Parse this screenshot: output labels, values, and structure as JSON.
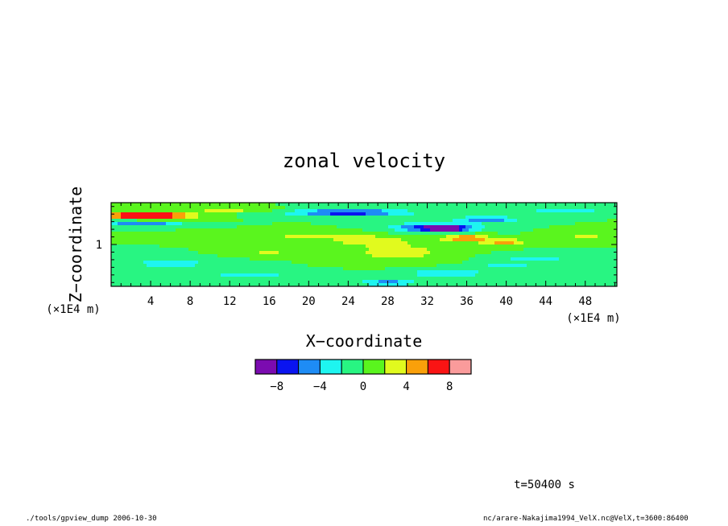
{
  "chart_data": {
    "type": "heatmap",
    "title": "zonal velocity",
    "xlabel": "X−coordinate",
    "ylabel": "Z−coordinate",
    "x_unit": "(×1E4 m)",
    "y_unit": "(×1E4 m)",
    "xlim": [
      0,
      51.2
    ],
    "ylim": [
      0.45,
      1.55
    ],
    "x_ticks": [
      4,
      8,
      12,
      16,
      20,
      24,
      28,
      32,
      36,
      40,
      44,
      48
    ],
    "y_ticks": [
      1
    ],
    "colorbar": {
      "levels": [
        -10,
        -8,
        -6,
        -4,
        -2,
        0,
        2,
        4,
        6,
        8,
        10
      ],
      "colors": [
        "#7b0bb0",
        "#0a14f0",
        "#1e8cf5",
        "#1ef5f0",
        "#28f582",
        "#5af51e",
        "#e1fa1e",
        "#faa00a",
        "#fa1414",
        "#fa9b9b"
      ],
      "tick_labels": [
        "-8",
        "-4",
        "0",
        "4",
        "8"
      ],
      "tick_values": [
        -8,
        -4,
        0,
        4,
        8
      ]
    },
    "background_value": 0,
    "features": [
      {
        "x": 2,
        "z": 1.38,
        "rx": 3.5,
        "rz": 0.035,
        "v": 9
      },
      {
        "x": 6,
        "z": 1.38,
        "rx": 3,
        "rz": 0.04,
        "v": 6
      },
      {
        "x": 3,
        "z": 1.27,
        "rx": 4,
        "rz": 0.03,
        "v": -6
      },
      {
        "x": 24,
        "z": 1.42,
        "rx": 6,
        "rz": 0.04,
        "v": -8
      },
      {
        "x": 33,
        "z": 1.22,
        "rx": 4,
        "rz": 0.06,
        "v": -9
      },
      {
        "x": 34,
        "z": 1.21,
        "rx": 1.5,
        "rz": 0.025,
        "v": -10
      },
      {
        "x": 38,
        "z": 1.33,
        "rx": 3,
        "rz": 0.04,
        "v": -6
      },
      {
        "x": 36,
        "z": 1.08,
        "rx": 2.5,
        "rz": 0.05,
        "v": 6
      },
      {
        "x": 40,
        "z": 1.03,
        "rx": 2,
        "rz": 0.04,
        "v": 5
      },
      {
        "x": 29,
        "z": 0.9,
        "rx": 5,
        "rz": 0.12,
        "v": 3
      },
      {
        "x": 26,
        "z": 1.05,
        "rx": 4,
        "rz": 0.06,
        "v": 3
      },
      {
        "x": 20,
        "z": 1.12,
        "rx": 6,
        "rz": 0.05,
        "v": 2.5
      },
      {
        "x": 34,
        "z": 0.62,
        "rx": 4,
        "rz": 0.06,
        "v": -4
      },
      {
        "x": 28,
        "z": 0.5,
        "rx": 3,
        "rz": 0.04,
        "v": -5
      },
      {
        "x": 43,
        "z": 0.82,
        "rx": 4,
        "rz": 0.05,
        "v": -3
      },
      {
        "x": 6,
        "z": 0.75,
        "rx": 5,
        "rz": 0.06,
        "v": -3
      },
      {
        "x": 14,
        "z": 0.6,
        "rx": 6,
        "rz": 0.06,
        "v": -2.5
      },
      {
        "x": 46,
        "z": 1.45,
        "rx": 5,
        "rz": 0.03,
        "v": -3
      },
      {
        "x": 12,
        "z": 1.45,
        "rx": 5,
        "rz": 0.03,
        "v": 2.5
      },
      {
        "x": 48,
        "z": 1.12,
        "rx": 3,
        "rz": 0.05,
        "v": 2.5
      },
      {
        "x": 16,
        "z": 0.88,
        "rx": 3,
        "rz": 0.04,
        "v": 2.5
      },
      {
        "x": 40,
        "z": 0.72,
        "rx": 3,
        "rz": 0.05,
        "v": -3
      }
    ]
  },
  "time_label": "t=50400 s",
  "footer": {
    "left": "./tools/gpview_dump  2006-10-30",
    "right": "nc/arare-Nakajima1994_VelX.nc@VelX,t=3600:86400"
  }
}
